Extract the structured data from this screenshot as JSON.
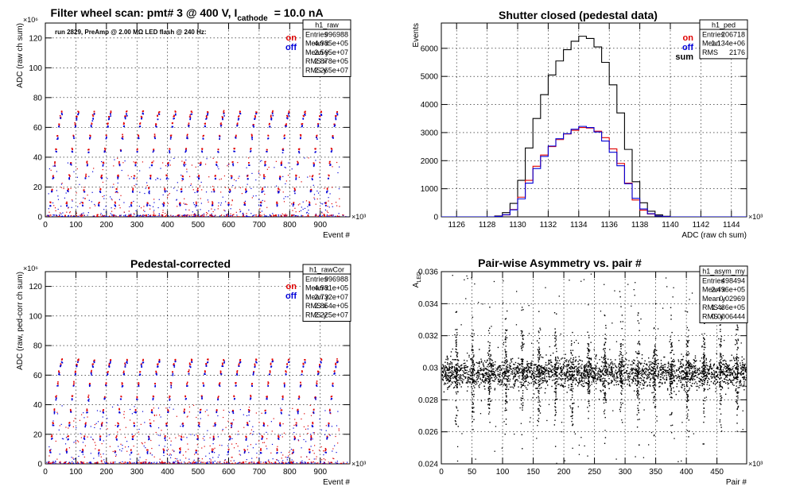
{
  "colors": {
    "on": "#e00000",
    "off": "#0000d8",
    "sum": "#000000"
  },
  "chart_data": [
    {
      "id": "p1",
      "type": "scatter",
      "title": "Filter wheel scan: pmt#   3 @   400 V, I",
      "title_sub": "cathode",
      "title_tail": "= 10.0 nA",
      "xlabel": "Event #",
      "ylabel": "ADC (raw ch sum)",
      "x_exp": "×10³",
      "y_exp": "×10⁶",
      "xlim": [
        0,
        996.988
      ],
      "ylim": [
        0,
        130
      ],
      "xticks": [
        0,
        100,
        200,
        300,
        400,
        500,
        600,
        700,
        800,
        900
      ],
      "yticks": [
        0,
        20,
        40,
        60,
        80,
        100,
        120
      ],
      "annotation": "run 2829, PreAmp @ 2.00 MΩ   LED flash @  240 Hz:",
      "legend": [
        {
          "label": "on",
          "color": "on"
        },
        {
          "label": "off",
          "color": "off"
        }
      ],
      "stats": {
        "name": "h1_raw",
        "rows": [
          [
            "Entries",
            "996988"
          ],
          [
            "Mean x",
            "4.985e+05"
          ],
          [
            "Mean y",
            "2.565e+07"
          ],
          [
            "RMS x",
            "2.878e+05"
          ],
          [
            "RMS y",
            "2.265e+07"
          ]
        ]
      },
      "steps": 18,
      "step_levels": [
        0.5,
        9,
        18,
        27,
        36,
        45,
        54,
        62,
        67,
        70
      ],
      "grid": true
    },
    {
      "id": "p2",
      "type": "line",
      "title": "Shutter closed (pedestal data)",
      "xlabel": "ADC (raw ch sum)",
      "ylabel": "Events",
      "x_exp": "×10³",
      "y_exp": "",
      "xlim": [
        1125,
        1145
      ],
      "ylim": [
        0,
        6900
      ],
      "xticks": [
        1126,
        1128,
        1130,
        1132,
        1134,
        1136,
        1138,
        1140,
        1142,
        1144
      ],
      "yticks": [
        0,
        1000,
        2000,
        3000,
        4000,
        5000,
        6000
      ],
      "legend": [
        {
          "label": "on",
          "color": "on"
        },
        {
          "label": "off",
          "color": "off"
        },
        {
          "label": "sum",
          "color": "sum"
        }
      ],
      "stats": {
        "name": "h1_ped",
        "rows": [
          [
            "Entries",
            "206718"
          ],
          [
            "Mean",
            "1.134e+06"
          ],
          [
            "RMS",
            "2176"
          ]
        ]
      },
      "series": [
        {
          "name": "sum",
          "color": "sum",
          "x": [
            1125,
            1128,
            1128.5,
            1129,
            1129.5,
            1130,
            1130.5,
            1131,
            1131.5,
            1132,
            1132.5,
            1133,
            1133.5,
            1134,
            1134.5,
            1135,
            1135.5,
            1136,
            1136.5,
            1137,
            1137.5,
            1138,
            1138.5,
            1139,
            1139.5,
            1140,
            1145
          ],
          "y": [
            0,
            0,
            30,
            150,
            480,
            1300,
            2450,
            3500,
            4350,
            5050,
            5550,
            5950,
            6250,
            6430,
            6350,
            6050,
            5500,
            4700,
            3700,
            2400,
            1250,
            500,
            200,
            70,
            20,
            0,
            0
          ]
        },
        {
          "name": "on",
          "color": "on",
          "x": [
            1125,
            1128,
            1128.5,
            1129,
            1129.5,
            1130,
            1130.5,
            1131,
            1131.5,
            1132,
            1132.5,
            1133,
            1133.5,
            1134,
            1134.5,
            1135,
            1135.5,
            1136,
            1136.5,
            1137,
            1137.5,
            1138,
            1138.5,
            1139,
            1139.5,
            1140,
            1145
          ],
          "y": [
            0,
            0,
            15,
            70,
            260,
            700,
            1300,
            1800,
            2200,
            2500,
            2750,
            2950,
            3080,
            3180,
            3160,
            3050,
            2820,
            2420,
            1900,
            1200,
            600,
            240,
            100,
            30,
            10,
            0,
            0
          ]
        },
        {
          "name": "off",
          "color": "off",
          "x": [
            1125,
            1128,
            1128.5,
            1129,
            1129.5,
            1130,
            1130.5,
            1131,
            1131.5,
            1132,
            1132.5,
            1133,
            1133.5,
            1134,
            1134.5,
            1135,
            1135.5,
            1136,
            1136.5,
            1137,
            1137.5,
            1138,
            1138.5,
            1139,
            1139.5,
            1140,
            1145
          ],
          "y": [
            0,
            0,
            15,
            75,
            250,
            640,
            1200,
            1720,
            2150,
            2520,
            2780,
            2960,
            3120,
            3220,
            3180,
            3020,
            2700,
            2300,
            1820,
            1180,
            660,
            280,
            110,
            30,
            10,
            0,
            0
          ]
        }
      ],
      "grid": true
    },
    {
      "id": "p3",
      "type": "scatter",
      "title": "Pedestal-corrected",
      "xlabel": "Event #",
      "ylabel": "ADC (raw, ped-corr ch sum)",
      "x_exp": "×10³",
      "y_exp": "×10⁶",
      "xlim": [
        0,
        996.988
      ],
      "ylim": [
        0,
        130
      ],
      "xticks": [
        0,
        100,
        200,
        300,
        400,
        500,
        600,
        700,
        800,
        900
      ],
      "yticks": [
        0,
        20,
        40,
        60,
        80,
        100,
        120
      ],
      "legend": [
        {
          "label": "on",
          "color": "on"
        },
        {
          "label": "off",
          "color": "off"
        }
      ],
      "stats": {
        "name": "h1_rawCor",
        "rows": [
          [
            "Entries",
            "996988"
          ],
          [
            "Mean x",
            "4.981e+05"
          ],
          [
            "Mean y",
            "2.732e+07"
          ],
          [
            "RMS x",
            "2.854e+05"
          ],
          [
            "RMS y",
            "2.225e+07"
          ]
        ]
      },
      "steps": 18,
      "step_levels": [
        0.5,
        9,
        18,
        27,
        36,
        45,
        54,
        62,
        67,
        70
      ],
      "grid": true
    },
    {
      "id": "p4",
      "type": "scatter",
      "title": "Pair-wise Asymmetry vs. pair #",
      "xlabel": "Pair #",
      "ylabel": "A",
      "ylabel_sub": "LED",
      "x_exp": "×10³",
      "y_exp": "",
      "xlim": [
        0,
        498.494
      ],
      "ylim": [
        0.024,
        0.036
      ],
      "xticks": [
        0,
        50,
        100,
        150,
        200,
        250,
        300,
        350,
        400,
        450
      ],
      "yticks": [
        0.024,
        0.026,
        0.028,
        0.03,
        0.032,
        0.034,
        0.036
      ],
      "stats": {
        "name": "h1_asym_my",
        "rows": [
          [
            "Entries",
            "498494"
          ],
          [
            "Mean x",
            "2.496e+05"
          ],
          [
            "Mean y",
            "0.02969"
          ],
          [
            "RMS x",
            "1.436e+05"
          ],
          [
            "RMS y",
            "0.0006444"
          ]
        ]
      },
      "band_center": 0.02969,
      "spikes": 18,
      "grid": true
    }
  ]
}
